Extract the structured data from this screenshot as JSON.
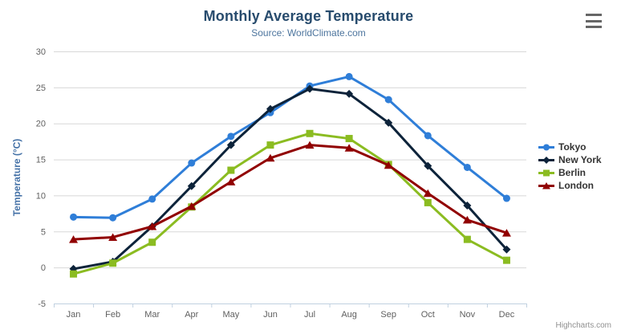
{
  "chart": {
    "title": "Monthly Average Temperature",
    "subtitle": "Source: WorldClimate.com",
    "credits": "Highcharts.com",
    "export_menu_icon": "hamburger-icon"
  },
  "chart_data": {
    "type": "line",
    "title": "Monthly Average Temperature",
    "subtitle": "Source: WorldClimate.com",
    "categories": [
      "Jan",
      "Feb",
      "Mar",
      "Apr",
      "May",
      "Jun",
      "Jul",
      "Aug",
      "Sep",
      "Oct",
      "Nov",
      "Dec"
    ],
    "xlabel": "",
    "ylabel": "Temperature (°C)",
    "ylim": [
      -5,
      30
    ],
    "yticks": [
      -5,
      0,
      5,
      10,
      15,
      20,
      25,
      30
    ],
    "grid": "horizontal",
    "legend_position": "right",
    "series": [
      {
        "name": "Tokyo",
        "color": "#2f7ed8",
        "marker": "circle",
        "values": [
          7.0,
          6.9,
          9.5,
          14.5,
          18.2,
          21.5,
          25.2,
          26.5,
          23.3,
          18.3,
          13.9,
          9.6
        ]
      },
      {
        "name": "New York",
        "color": "#0d233a",
        "marker": "diamond",
        "values": [
          -0.2,
          0.8,
          5.7,
          11.3,
          17.0,
          22.0,
          24.8,
          24.1,
          20.1,
          14.1,
          8.6,
          2.5
        ]
      },
      {
        "name": "Berlin",
        "color": "#8bbc21",
        "marker": "square",
        "values": [
          -0.9,
          0.6,
          3.5,
          8.4,
          13.5,
          17.0,
          18.6,
          17.9,
          14.3,
          9.0,
          3.9,
          1.0
        ]
      },
      {
        "name": "London",
        "color": "#910000",
        "marker": "triangle",
        "values": [
          3.9,
          4.2,
          5.7,
          8.5,
          11.9,
          15.2,
          17.0,
          16.6,
          14.2,
          10.3,
          6.6,
          4.8
        ]
      }
    ],
    "colors": {
      "grid": "#d8d8d8",
      "axis_line": "#c0d0e0",
      "axis_label": "#606060",
      "yaxis_title": "#4572a7",
      "title": "#274b6d",
      "subtitle": "#4d759e",
      "legend_text": "#333333",
      "credits": "#909090"
    }
  }
}
